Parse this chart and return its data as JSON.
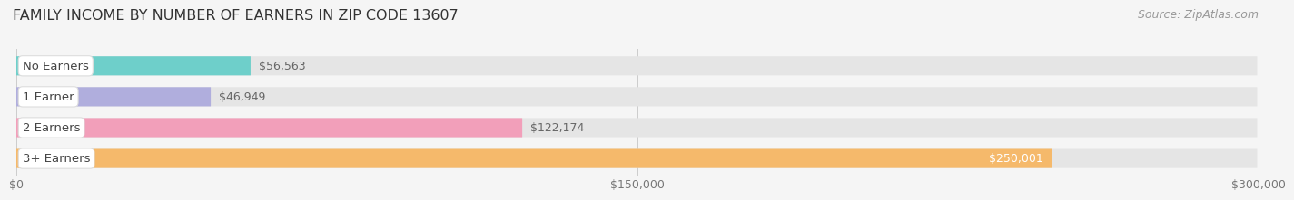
{
  "title": "FAMILY INCOME BY NUMBER OF EARNERS IN ZIP CODE 13607",
  "source": "Source: ZipAtlas.com",
  "categories": [
    "No Earners",
    "1 Earner",
    "2 Earners",
    "3+ Earners"
  ],
  "values": [
    56563,
    46949,
    122174,
    250001
  ],
  "bar_colors": [
    "#6ecfca",
    "#b0aedd",
    "#f29fba",
    "#f5b96b"
  ],
  "value_labels": [
    "$56,563",
    "$46,949",
    "$122,174",
    "$250,001"
  ],
  "value_label_inside": [
    false,
    false,
    false,
    true
  ],
  "xlim": [
    0,
    300000
  ],
  "xticks": [
    0,
    150000,
    300000
  ],
  "xticklabels": [
    "$0",
    "$150,000",
    "$300,000"
  ],
  "bar_height": 0.62,
  "background_color": "#f5f5f5",
  "bar_bg_color": "#e5e5e5",
  "title_fontsize": 11.5,
  "source_fontsize": 9,
  "label_fontsize": 9.5,
  "value_fontsize": 9,
  "tick_fontsize": 9
}
